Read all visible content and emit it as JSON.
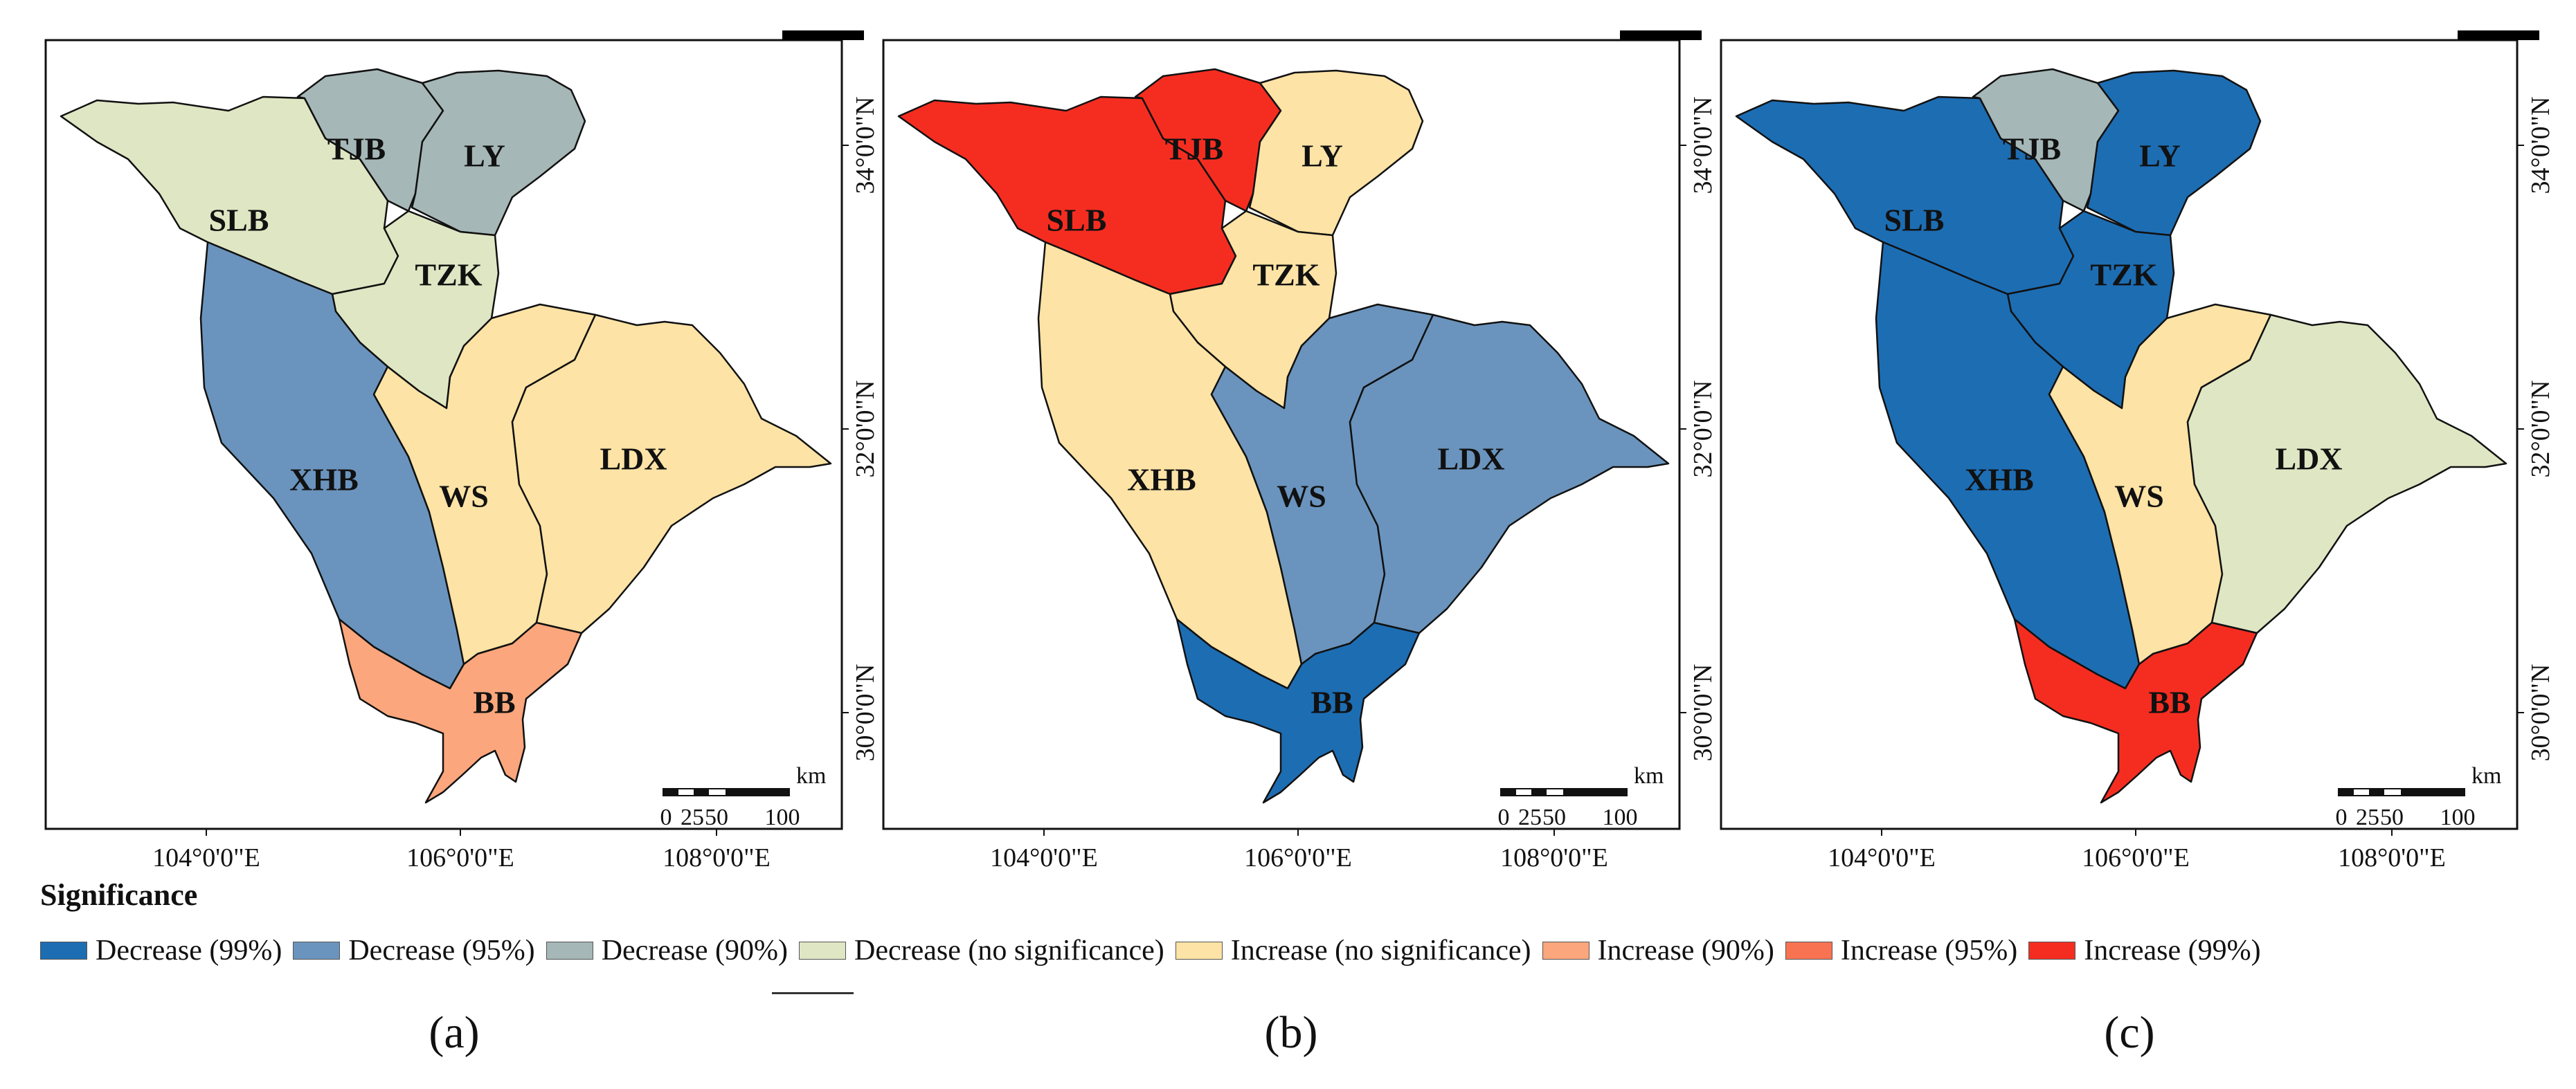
{
  "colors": {
    "dec99": "#1d6db3",
    "dec95": "#6a94bd",
    "dec90": "#a5b7b6",
    "decns": "#dfe6c3",
    "incns": "#fde3a5",
    "inc90": "#fba67c",
    "inc95": "#f87352",
    "inc99": "#f52d21"
  },
  "regions": [
    "SLB",
    "TJB",
    "LY",
    "TZK",
    "XHB",
    "WS",
    "LDX",
    "BB"
  ],
  "panels": [
    {
      "label": "(a)",
      "classes": {
        "SLB": "decns",
        "TJB": "dec90",
        "LY": "dec90",
        "TZK": "decns",
        "XHB": "dec95",
        "WS": "incns",
        "LDX": "incns",
        "BB": "inc90"
      }
    },
    {
      "label": "(b)",
      "classes": {
        "SLB": "inc99",
        "TJB": "inc99",
        "LY": "incns",
        "TZK": "incns",
        "XHB": "incns",
        "WS": "dec95",
        "LDX": "dec95",
        "BB": "dec99"
      }
    },
    {
      "label": "(c)",
      "classes": {
        "SLB": "dec99",
        "TJB": "dec90",
        "LY": "dec99",
        "TZK": "dec99",
        "XHB": "dec99",
        "WS": "incns",
        "LDX": "decns",
        "BB": "inc99"
      }
    }
  ],
  "axes": {
    "x_ticks": [
      "104°0'0\"E",
      "106°0'0\"E",
      "108°0'0\"E"
    ],
    "y_ticks": [
      "34°0'0\"N",
      "32°0'0\"N",
      "30°0'0\"N"
    ]
  },
  "scale_bar": {
    "unit": "km",
    "ticks": [
      "0",
      "25",
      "50",
      "100"
    ]
  },
  "legend": {
    "title": "Significance",
    "items": [
      {
        "key": "dec99",
        "label": "Decrease (99%)"
      },
      {
        "key": "dec95",
        "label": "Decrease (95%)"
      },
      {
        "key": "dec90",
        "label": "Decrease (90%)"
      },
      {
        "key": "decns",
        "label": "Decrease (no significance)"
      },
      {
        "key": "incns",
        "label": "Increase (no significance)"
      },
      {
        "key": "inc90",
        "label": "Increase (90%)"
      },
      {
        "key": "inc95",
        "label": "Increase (95%)"
      },
      {
        "key": "inc99",
        "label": "Increase (99%)"
      }
    ]
  }
}
